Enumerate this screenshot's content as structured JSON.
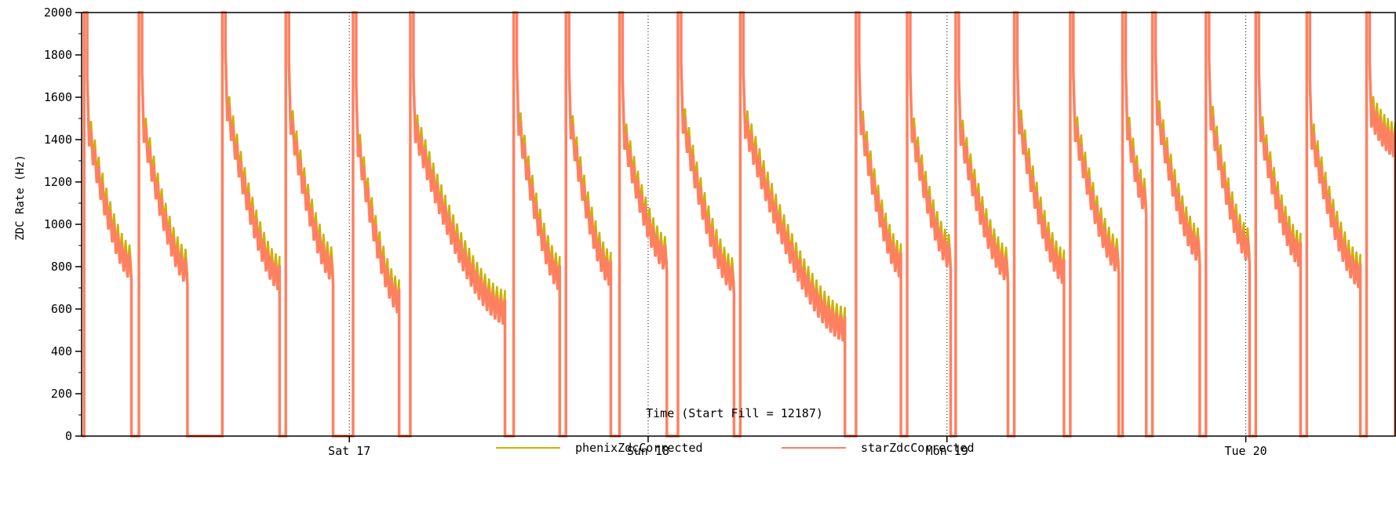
{
  "chart_data": {
    "type": "line",
    "title": "",
    "xlabel": "Time (Start Fill = 12187)",
    "ylabel": "ZDC Rate (Hz)",
    "ylim": [
      0,
      2000
    ],
    "y_ticks": [
      0,
      200,
      400,
      600,
      800,
      1000,
      1200,
      1400,
      1600,
      1800,
      2000
    ],
    "x_domain_hours": [
      0,
      105.5
    ],
    "x_ticks": [
      {
        "label": "Sat 17",
        "hour": 21.5
      },
      {
        "label": "Sun 18",
        "hour": 45.5
      },
      {
        "label": "Mon 19",
        "hour": 69.5
      },
      {
        "label": "Tue 20",
        "hour": 93.5
      }
    ],
    "grid": "vertical dotted lines at day boundaries",
    "legend": "bottom-center",
    "colors": {
      "phenix": "#c8b400",
      "star": "#ff8060",
      "axis": "#000000"
    },
    "fills": [
      {
        "start": 0.2,
        "end": 4.0,
        "start_rate": 1500,
        "end_rate": 820
      },
      {
        "start": 4.6,
        "end": 8.5,
        "start_rate": 1520,
        "end_rate": 800
      },
      {
        "start": 11.3,
        "end": 15.9,
        "start_rate": 1620,
        "end_rate": 770
      },
      {
        "start": 16.4,
        "end": 20.2,
        "start_rate": 1560,
        "end_rate": 810
      },
      {
        "start": 21.8,
        "end": 25.5,
        "start_rate": 1460,
        "end_rate": 660
      },
      {
        "start": 26.4,
        "end": 34.0,
        "start_rate": 1500,
        "end_rate": 610
      },
      {
        "start": 34.7,
        "end": 38.4,
        "start_rate": 1560,
        "end_rate": 770
      },
      {
        "start": 38.9,
        "end": 42.5,
        "start_rate": 1540,
        "end_rate": 790
      },
      {
        "start": 43.2,
        "end": 47.0,
        "start_rate": 1480,
        "end_rate": 860
      },
      {
        "start": 47.9,
        "end": 52.4,
        "start_rate": 1560,
        "end_rate": 760
      },
      {
        "start": 52.9,
        "end": 61.3,
        "start_rate": 1520,
        "end_rate": 530
      },
      {
        "start": 62.2,
        "end": 65.8,
        "start_rate": 1560,
        "end_rate": 830
      },
      {
        "start": 66.3,
        "end": 69.8,
        "start_rate": 1520,
        "end_rate": 870
      },
      {
        "start": 70.2,
        "end": 74.4,
        "start_rate": 1500,
        "end_rate": 810
      },
      {
        "start": 74.9,
        "end": 78.9,
        "start_rate": 1560,
        "end_rate": 800
      },
      {
        "start": 79.4,
        "end": 83.3,
        "start_rate": 1520,
        "end_rate": 850
      },
      {
        "start": 83.6,
        "end": 85.5,
        "start_rate": 1540,
        "end_rate": 1130
      },
      {
        "start": 86.0,
        "end": 89.8,
        "start_rate": 1600,
        "end_rate": 900
      },
      {
        "start": 90.3,
        "end": 93.8,
        "start_rate": 1580,
        "end_rate": 900
      },
      {
        "start": 94.3,
        "end": 97.9,
        "start_rate": 1520,
        "end_rate": 880
      },
      {
        "start": 98.4,
        "end": 102.7,
        "start_rate": 1480,
        "end_rate": 780
      },
      {
        "start": 103.2,
        "end": 105.5,
        "start_rate": 1560,
        "end_rate": 1400
      }
    ],
    "series": [
      {
        "name": "phenixZdcCorrected",
        "key": "phenix"
      },
      {
        "name": "starZdcCorrected",
        "key": "star"
      }
    ]
  }
}
